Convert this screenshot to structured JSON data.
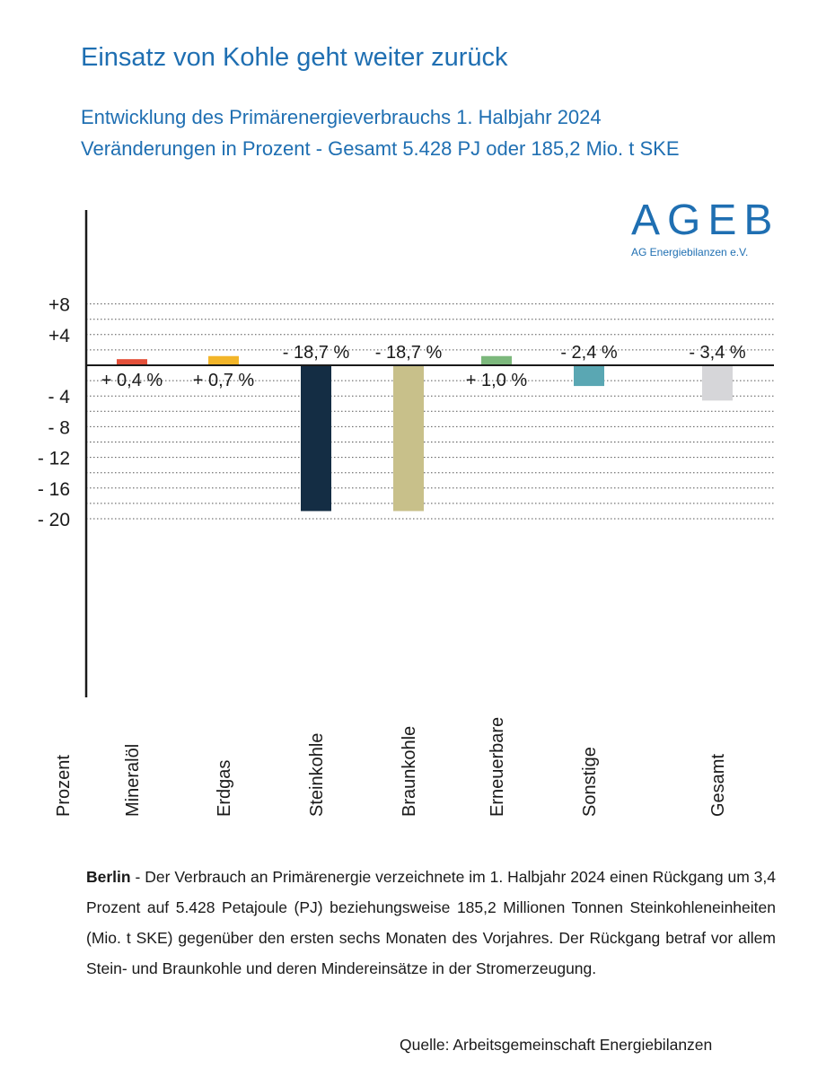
{
  "header": {
    "title": "Einsatz von Kohle geht weiter zurück",
    "subtitle_line1": "Entwicklung des Primärenergieverbrauchs 1. Halbjahr 2024",
    "subtitle_line2": "Veränderungen in Prozent - Gesamt 5.428 PJ oder 185,2 Mio. t SKE"
  },
  "logo": {
    "word": "AGEB",
    "subtitle": "AG Energiebilanzen e.V."
  },
  "chart_data": {
    "type": "bar",
    "ylabel": "Prozent",
    "ylim": [
      -21,
      10
    ],
    "yticks": [
      {
        "value": 8,
        "label": "+8"
      },
      {
        "value": 4,
        "label": "+4"
      },
      {
        "value": -4,
        "label": "- 4"
      },
      {
        "value": -8,
        "label": "- 8"
      },
      {
        "value": -12,
        "label": "- 12"
      },
      {
        "value": -16,
        "label": "- 16"
      },
      {
        "value": -20,
        "label": "- 20"
      }
    ],
    "dotted_grid_values": [
      8,
      6,
      4,
      2,
      -2,
      -4,
      -6,
      -8,
      -10,
      -12,
      -14,
      -16,
      -18,
      -20
    ],
    "categories": [
      "Mineralöl",
      "Erdgas",
      "Steinkohle",
      "Braunkohle",
      "Erneuerbare",
      "Sonstige",
      "Gesamt"
    ],
    "values": [
      0.4,
      0.7,
      -18.7,
      -18.7,
      1.0,
      -2.4,
      -3.4
    ],
    "bar_ends": [
      0.8,
      1.2,
      -19.0,
      -19.0,
      1.2,
      -2.7,
      -4.6
    ],
    "data_labels": [
      "+ 0,4 %",
      "+ 0,7 %",
      "- 18,7 %",
      "- 18,7 %",
      "+ 1,0 %",
      "- 2,4 %",
      "- 3,4 %"
    ],
    "colors": [
      "#e4503a",
      "#f2b529",
      "#142d44",
      "#c8c08a",
      "#7cb87c",
      "#5aa7b3",
      "#d6d6d9"
    ],
    "grid": true
  },
  "body": {
    "lead": "Berlin",
    "text": " - Der Verbrauch an Primärenergie verzeichnete im 1. Halbjahr 2024 einen Rückgang um 3,4 Prozent auf 5.428 Petajoule (PJ) beziehungsweise 185,2 Millionen Tonnen Steinkohleneinheiten (Mio. t SKE) gegenüber den ersten sechs Monaten des Vorjahres. Der Rückgang betraf vor allem Stein- und Braunkohle und deren Mindereinsätze in der Stromerzeugung."
  },
  "source": "Quelle: Arbeitsgemeinschaft Energiebilanzen"
}
